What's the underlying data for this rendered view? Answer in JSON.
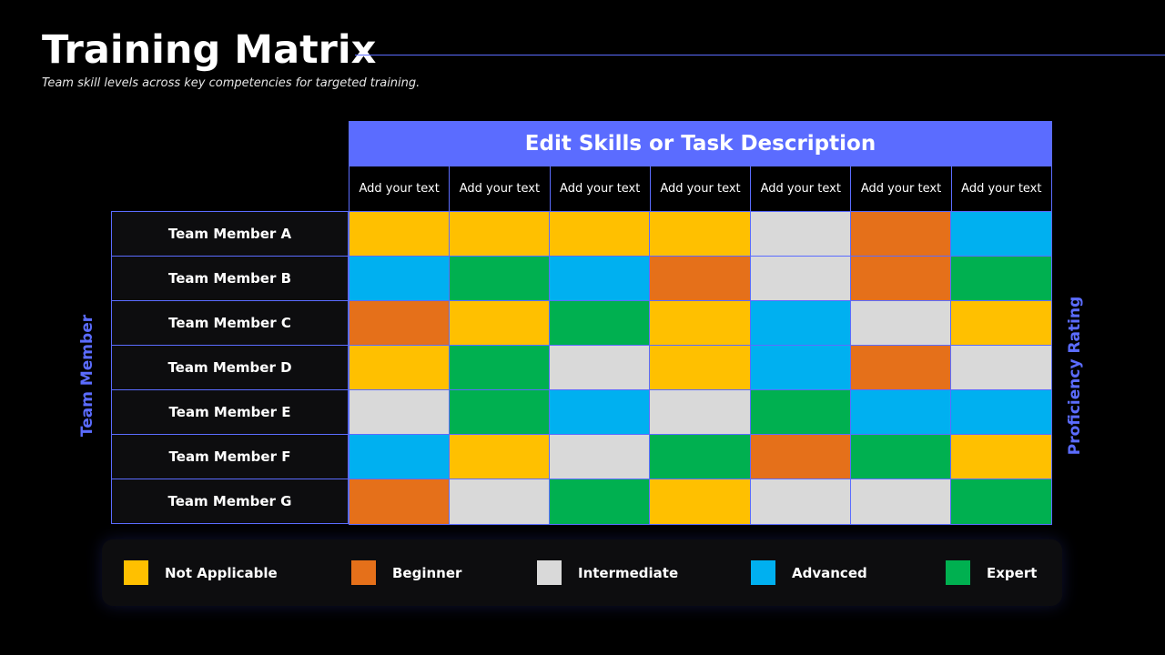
{
  "title": "Training Matrix",
  "subtitle": "Team skill levels across key competencies for targeted training.",
  "header": "Edit Skills or Task Description",
  "y_axis_label": "Team Member",
  "right_axis_label": "Proficiency Rating",
  "colors": {
    "accent": "#5b6cff",
    "Not Applicable": "#ffc000",
    "Beginner": "#e5701a",
    "Intermediate": "#d9d9d9",
    "Advanced": "#00b0f0",
    "Expert": "#00b050"
  },
  "chart_data": {
    "type": "heatmap",
    "columns": [
      "Add your text",
      "Add your text",
      "Add your text",
      "Add your text",
      "Add your text",
      "Add your text",
      "Add your text"
    ],
    "rows": [
      "Team Member A",
      "Team Member B",
      "Team Member C",
      "Team Member D",
      "Team Member E",
      "Team Member F",
      "Team Member G"
    ],
    "levels": [
      "Not Applicable",
      "Beginner",
      "Intermediate",
      "Advanced",
      "Expert"
    ],
    "values": [
      [
        "Not Applicable",
        "Not Applicable",
        "Not Applicable",
        "Not Applicable",
        "Intermediate",
        "Beginner",
        "Advanced"
      ],
      [
        "Advanced",
        "Expert",
        "Advanced",
        "Beginner",
        "Intermediate",
        "Beginner",
        "Expert"
      ],
      [
        "Beginner",
        "Not Applicable",
        "Expert",
        "Not Applicable",
        "Advanced",
        "Intermediate",
        "Not Applicable"
      ],
      [
        "Not Applicable",
        "Expert",
        "Intermediate",
        "Not Applicable",
        "Advanced",
        "Beginner",
        "Intermediate"
      ],
      [
        "Intermediate",
        "Expert",
        "Advanced",
        "Intermediate",
        "Expert",
        "Advanced",
        "Advanced"
      ],
      [
        "Advanced",
        "Not Applicable",
        "Intermediate",
        "Expert",
        "Beginner",
        "Expert",
        "Not Applicable"
      ],
      [
        "Beginner",
        "Intermediate",
        "Expert",
        "Not Applicable",
        "Intermediate",
        "Intermediate",
        "Expert"
      ]
    ],
    "legend": [
      "Not Applicable",
      "Beginner",
      "Intermediate",
      "Advanced",
      "Expert"
    ],
    "legend_position": "bottom"
  }
}
